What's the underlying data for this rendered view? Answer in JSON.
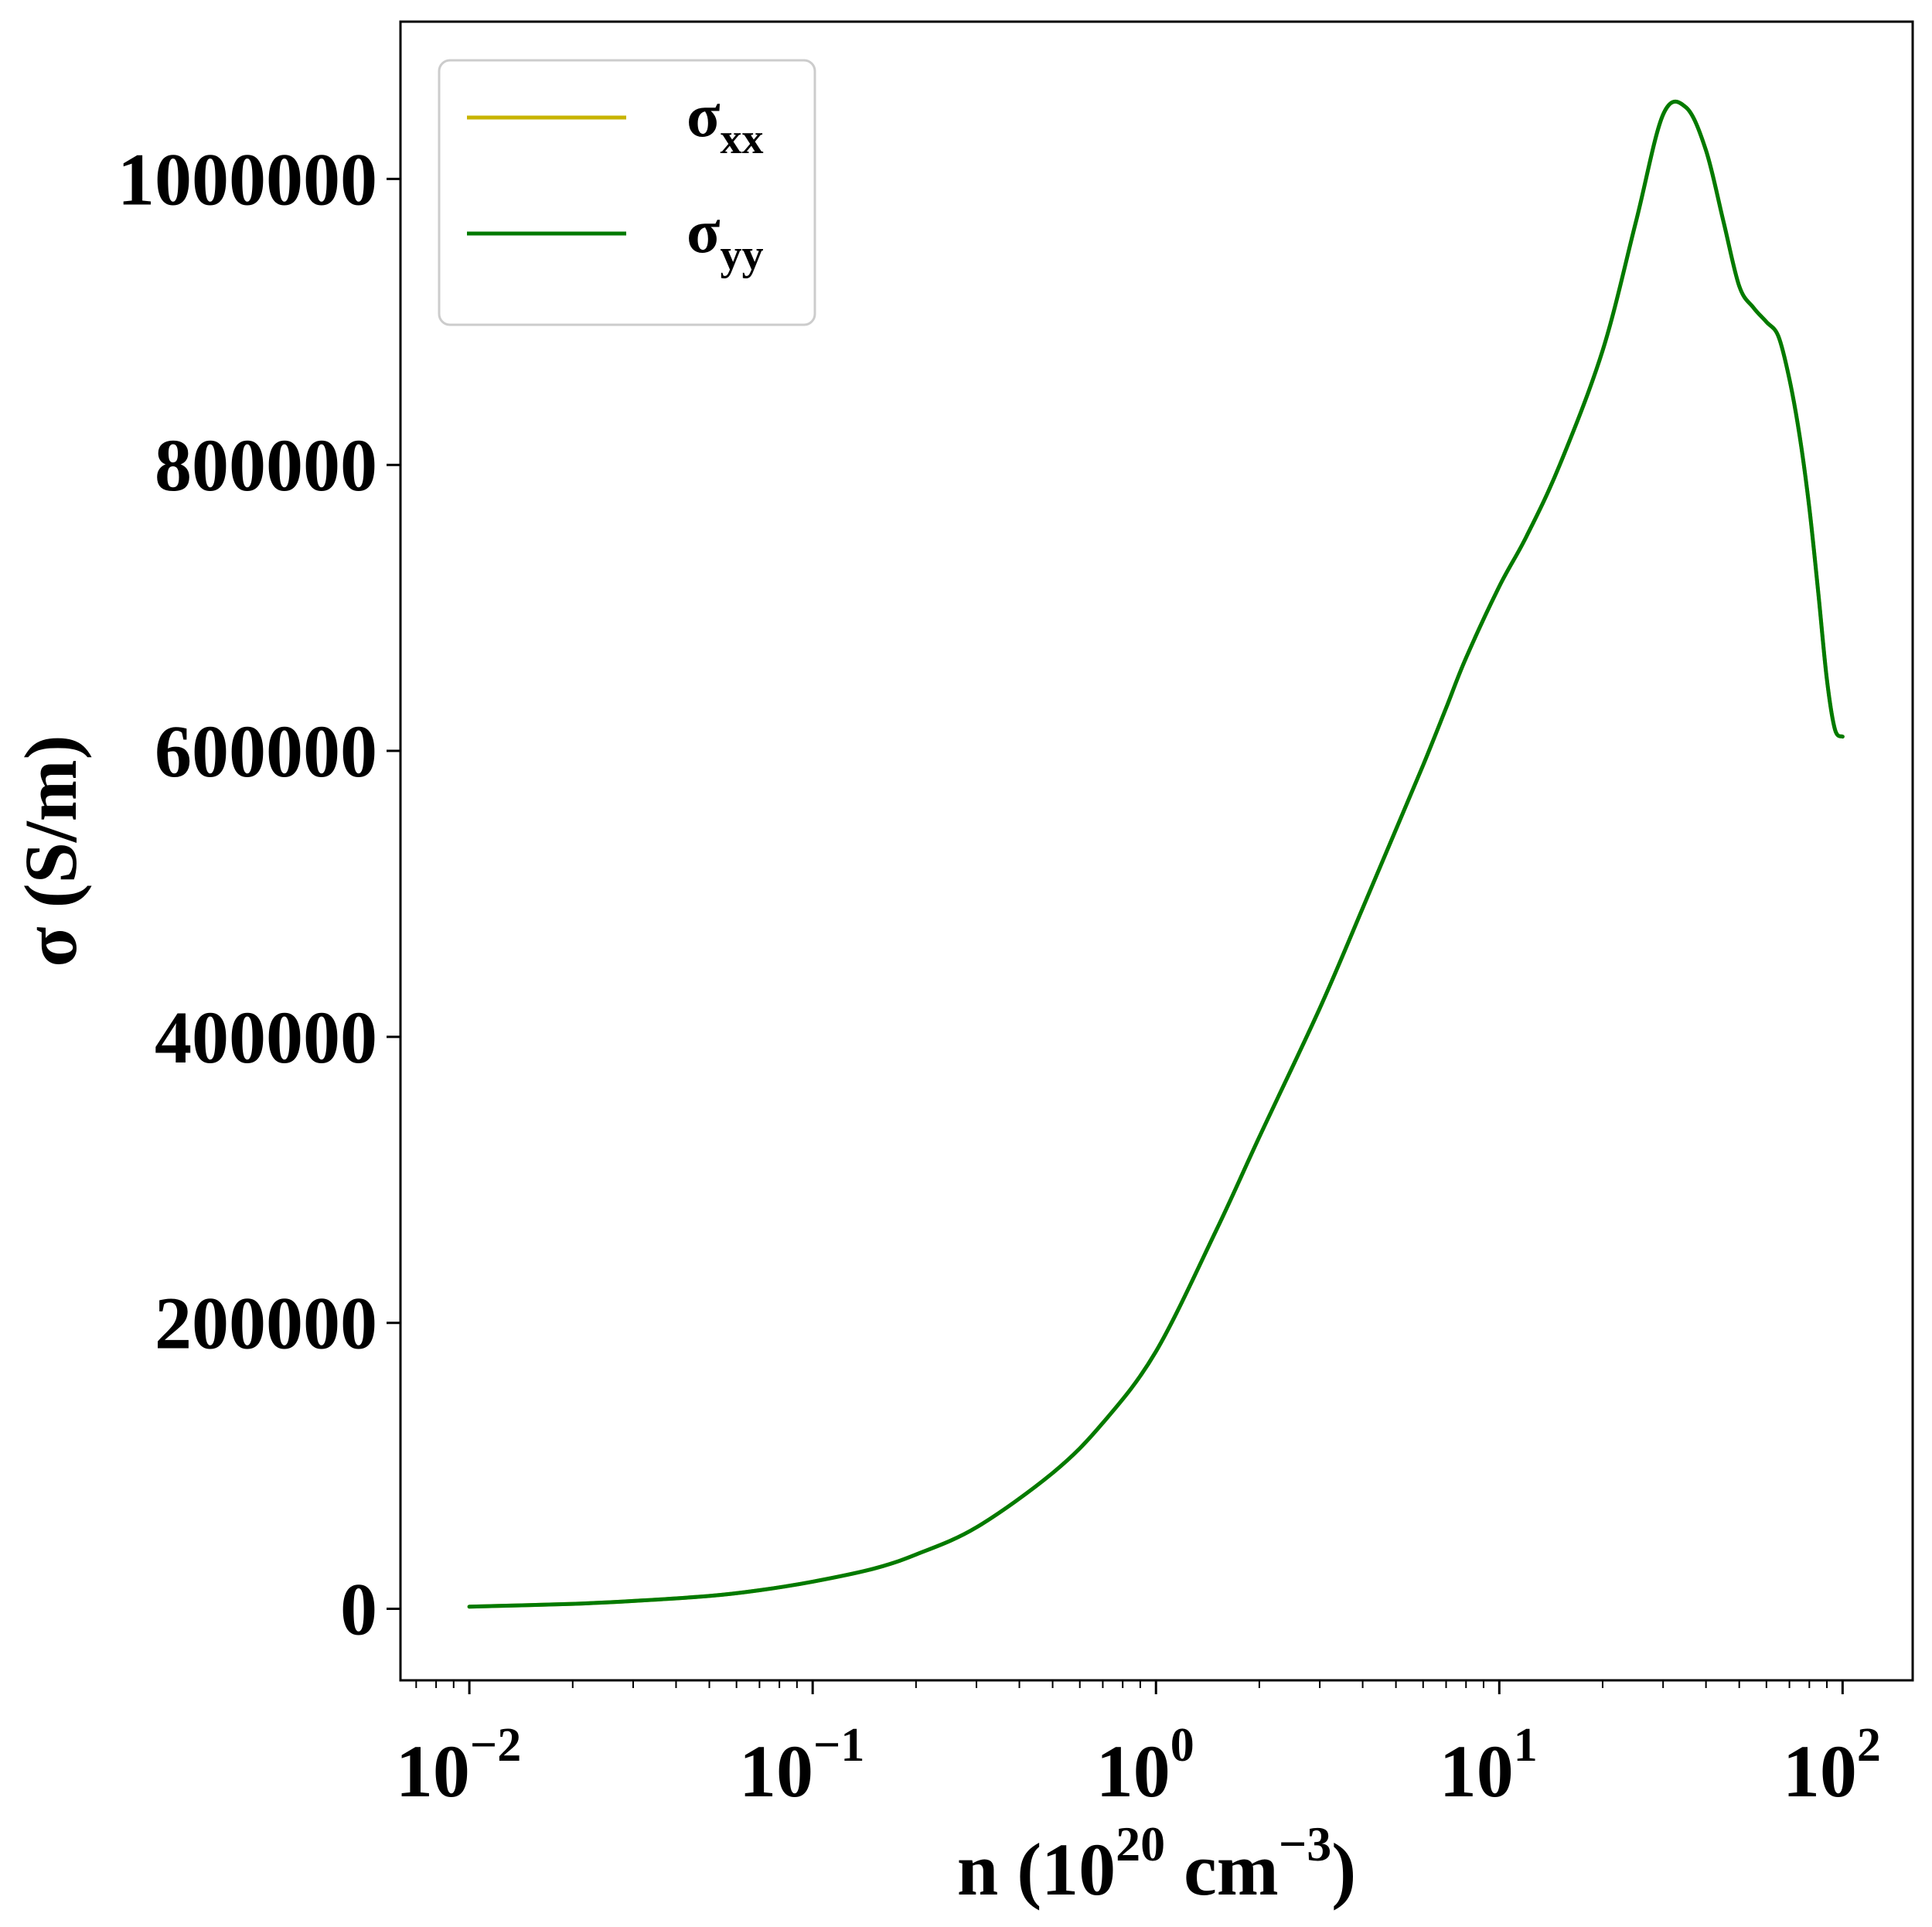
{
  "chart_data": {
    "type": "line",
    "xscale": "log",
    "xlim": [
      0.0063,
      160
    ],
    "ylim": [
      -50000,
      1110000
    ],
    "grid": false,
    "legend_position": "top-left",
    "xlabel": {
      "base": "n (10",
      "exp": "20",
      "mid": " cm",
      "exp2": "−3",
      "end": ")"
    },
    "ylabel": "σ (S/m)",
    "xticks": [
      {
        "value": 0.01,
        "base": "10",
        "exp": "−2"
      },
      {
        "value": 0.1,
        "base": "10",
        "exp": "−1"
      },
      {
        "value": 1,
        "base": "10",
        "exp": "0"
      },
      {
        "value": 10,
        "base": "10",
        "exp": "1"
      },
      {
        "value": 100,
        "base": "10",
        "exp": "2"
      }
    ],
    "yticks": [
      {
        "value": 0,
        "label": "0"
      },
      {
        "value": 200000,
        "label": "200000"
      },
      {
        "value": 400000,
        "label": "400000"
      },
      {
        "value": 600000,
        "label": "600000"
      },
      {
        "value": 800000,
        "label": "800000"
      },
      {
        "value": 1000000,
        "label": "1000000"
      }
    ],
    "series": [
      {
        "name": "σ",
        "sub": "xx",
        "color": "#c8b400",
        "x": [
          0.01,
          0.02,
          0.03,
          0.05,
          0.07,
          0.1,
          0.15,
          0.2,
          0.3,
          0.5,
          0.7,
          1,
          1.5,
          2,
          3,
          4,
          5,
          6,
          7,
          8,
          10,
          12,
          15,
          20,
          25,
          30,
          35,
          40,
          45,
          50,
          55,
          60,
          65,
          70,
          75,
          80,
          85,
          90,
          95,
          100
        ],
        "y": [
          1500,
          3500,
          5500,
          9000,
          13000,
          19000,
          28000,
          38000,
          57000,
          95000,
          130000,
          180000,
          265000,
          330000,
          420000,
          490000,
          545000,
          590000,
          630000,
          665000,
          715000,
          750000,
          800000,
          880000,
          970000,
          1045000,
          1050000,
          1020000,
          970000,
          925000,
          910000,
          900000,
          890000,
          860000,
          820000,
          770000,
          710000,
          650000,
          615000,
          610000
        ]
      },
      {
        "name": "σ",
        "sub": "yy",
        "color": "#007a00",
        "x": [
          0.01,
          0.02,
          0.03,
          0.05,
          0.07,
          0.1,
          0.15,
          0.2,
          0.3,
          0.5,
          0.7,
          1,
          1.5,
          2,
          3,
          4,
          5,
          6,
          7,
          8,
          10,
          12,
          15,
          20,
          25,
          30,
          35,
          40,
          45,
          50,
          55,
          60,
          65,
          70,
          75,
          80,
          85,
          90,
          95,
          100
        ],
        "y": [
          1500,
          3500,
          5500,
          9000,
          13000,
          19000,
          28000,
          38000,
          57000,
          95000,
          130000,
          180000,
          265000,
          330000,
          420000,
          490000,
          545000,
          590000,
          630000,
          665000,
          715000,
          750000,
          800000,
          880000,
          970000,
          1045000,
          1050000,
          1020000,
          970000,
          925000,
          910000,
          900000,
          890000,
          860000,
          820000,
          770000,
          710000,
          650000,
          615000,
          610000
        ]
      }
    ]
  }
}
